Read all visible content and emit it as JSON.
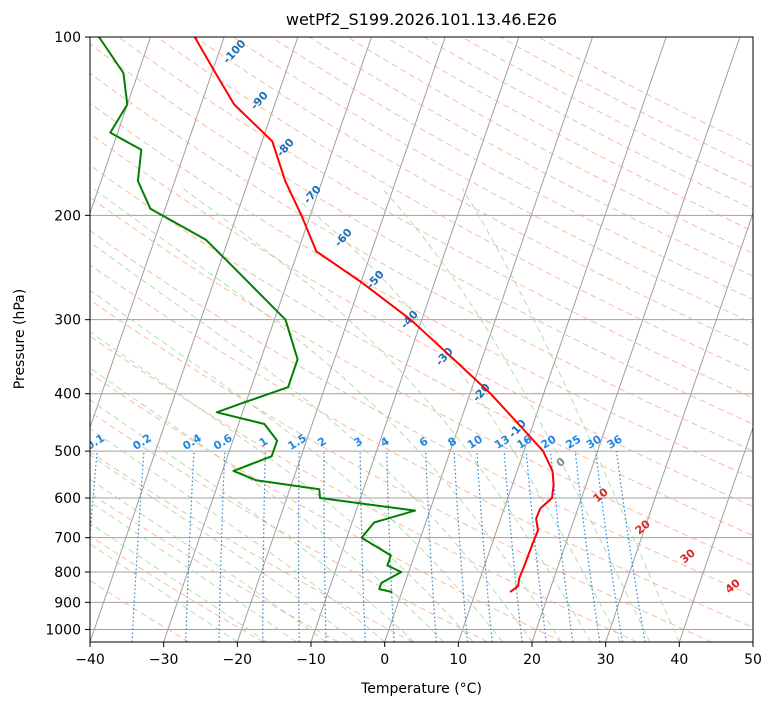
{
  "chart_data": {
    "type": "line",
    "title": "wetPf2_S199.2026.101.13.46.E26",
    "xlabel": "Temperature (°C)",
    "ylabel": "Pressure (hPa)",
    "xlim": [
      -40,
      50
    ],
    "ylim": [
      1050,
      100
    ],
    "x_ticks": [
      "−40",
      "−30",
      "−20",
      "−10",
      "0",
      "10",
      "20",
      "30",
      "40",
      "50"
    ],
    "x_tick_values": [
      -40,
      -30,
      -20,
      -10,
      0,
      10,
      20,
      30,
      40,
      50
    ],
    "y_ticks": [
      "100",
      "200",
      "300",
      "400",
      "500",
      "600",
      "700",
      "800",
      "900",
      "1000"
    ],
    "y_tick_values": [
      100,
      200,
      300,
      400,
      500,
      600,
      700,
      800,
      900,
      1000
    ],
    "skew_factor": 12,
    "colors": {
      "temperature": "#ff0000",
      "dewpoint": "#008000",
      "isotherm": "#a0a0a0",
      "isobar": "#a0a0a0",
      "dry_adiabat": "#f4a582",
      "moist_adiabat": "#a6d8a6",
      "mixing_ratio": "#1e88e5",
      "potential_temp_label": "#1f6fb5",
      "theta_e_label": "#d62728",
      "zero_label": "#888888",
      "tan_curve": "#d2b48c"
    },
    "series": [
      {
        "name": "Temperature",
        "points": [
          {
            "p": 865,
            "t": 14.7
          },
          {
            "p": 845,
            "t": 15.5
          },
          {
            "p": 820,
            "t": 15.3
          },
          {
            "p": 780,
            "t": 15.4
          },
          {
            "p": 720,
            "t": 15.5
          },
          {
            "p": 680,
            "t": 15.6
          },
          {
            "p": 650,
            "t": 14.8
          },
          {
            "p": 625,
            "t": 14.9
          },
          {
            "p": 600,
            "t": 16.0
          },
          {
            "p": 570,
            "t": 15.6
          },
          {
            "p": 540,
            "t": 14.8
          },
          {
            "p": 500,
            "t": 12.6
          },
          {
            "p": 450,
            "t": 8.0
          },
          {
            "p": 400,
            "t": 2.8
          },
          {
            "p": 350,
            "t": -3.8
          },
          {
            "p": 300,
            "t": -11.5
          },
          {
            "p": 260,
            "t": -19.8
          },
          {
            "p": 230,
            "t": -27.5
          },
          {
            "p": 200,
            "t": -31.2
          },
          {
            "p": 175,
            "t": -35.0
          },
          {
            "p": 150,
            "t": -38.6
          },
          {
            "p": 130,
            "t": -45.5
          },
          {
            "p": 115,
            "t": -49.5
          },
          {
            "p": 100,
            "t": -54.0
          }
        ]
      },
      {
        "name": "Dewpoint",
        "points": [
          {
            "p": 865,
            "t": -1.3
          },
          {
            "p": 855,
            "t": -3.2
          },
          {
            "p": 835,
            "t": -3.2
          },
          {
            "p": 800,
            "t": -1.0
          },
          {
            "p": 780,
            "t": -3.2
          },
          {
            "p": 750,
            "t": -3.2
          },
          {
            "p": 700,
            "t": -8.0
          },
          {
            "p": 660,
            "t": -7.0
          },
          {
            "p": 630,
            "t": -2.0
          },
          {
            "p": 600,
            "t": -15.5
          },
          {
            "p": 580,
            "t": -16.0
          },
          {
            "p": 560,
            "t": -25.0
          },
          {
            "p": 540,
            "t": -28.5
          },
          {
            "p": 510,
            "t": -24.0
          },
          {
            "p": 480,
            "t": -24.0
          },
          {
            "p": 450,
            "t": -26.5
          },
          {
            "p": 430,
            "t": -33.5
          },
          {
            "p": 415,
            "t": -30.5
          },
          {
            "p": 390,
            "t": -25.0
          },
          {
            "p": 350,
            "t": -25.0
          },
          {
            "p": 300,
            "t": -28.5
          },
          {
            "p": 250,
            "t": -37.0
          },
          {
            "p": 220,
            "t": -43.0
          },
          {
            "p": 195,
            "t": -52.0
          },
          {
            "p": 175,
            "t": -55.0
          },
          {
            "p": 155,
            "t": -56.0
          },
          {
            "p": 145,
            "t": -61.0
          },
          {
            "p": 130,
            "t": -60.0
          },
          {
            "p": 115,
            "t": -62.0
          },
          {
            "p": 100,
            "t": -67.0
          }
        ]
      }
    ],
    "mixing_ratio_labels": [
      "0.1",
      "0.2",
      "0.4",
      "0.6",
      "1",
      "1.5",
      "2",
      "3",
      "4",
      "6",
      "8",
      "10",
      "13",
      "16",
      "20",
      "25",
      "30",
      "36"
    ],
    "mixing_ratio_values": [
      0.1,
      0.2,
      0.4,
      0.6,
      1,
      1.5,
      2,
      3,
      4,
      6,
      8,
      10,
      13,
      16,
      20,
      25,
      30,
      36
    ],
    "potential_temp_labels": [
      "-100",
      "-90",
      "-80",
      "-70",
      "-60",
      "-50",
      "-40",
      "-30",
      "-20",
      "-10"
    ],
    "theta_e_labels": [
      "0",
      "10",
      "20",
      "30",
      "40"
    ]
  }
}
